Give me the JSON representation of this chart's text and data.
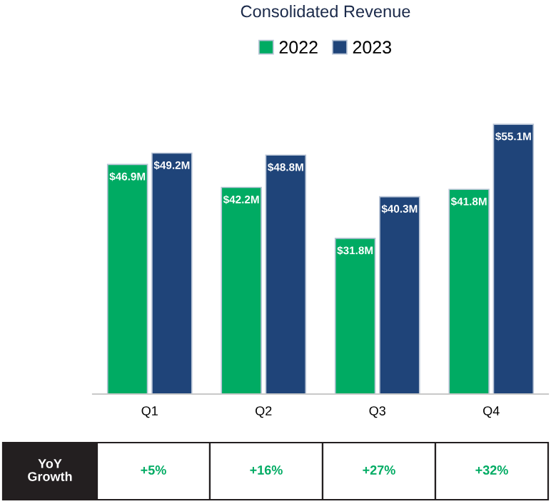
{
  "chart_data": {
    "type": "bar",
    "title": "Consolidated Revenue",
    "categories": [
      "Q1",
      "Q2",
      "Q3",
      "Q4"
    ],
    "series": [
      {
        "name": "2022",
        "color": "#00ab63",
        "values": [
          46.9,
          42.2,
          31.8,
          41.8
        ],
        "value_labels": [
          "$46.9M",
          "$42.2M",
          "$31.8M",
          "$41.8M"
        ]
      },
      {
        "name": "2023",
        "color": "#1f4479",
        "values": [
          49.2,
          48.8,
          40.3,
          55.1
        ],
        "value_labels": [
          "$49.2M",
          "$48.8M",
          "$40.3M",
          "$55.1M"
        ]
      }
    ],
    "tick_labels": "x",
    "legend": "top",
    "grid": false,
    "annotations": [
      "YoY\nGrowth",
      "+5%",
      "+16%",
      "+27%",
      "+32%"
    ]
  }
}
